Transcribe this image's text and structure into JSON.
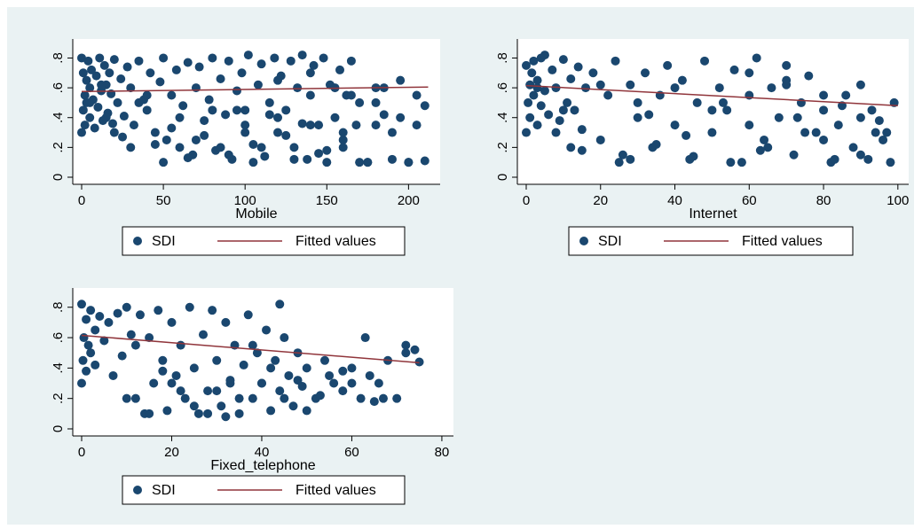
{
  "colors": {
    "outer_bg": "#eaf2f3",
    "plot_bg": "#ffffff",
    "marker": "#1a476f",
    "fit_line": "#90353b",
    "axis": "#000000"
  },
  "chart_data": [
    {
      "type": "scatter",
      "xlabel": "Mobile",
      "ylabel": "",
      "xlim": [
        0,
        215
      ],
      "ylim": [
        0,
        0.88
      ],
      "xticks": [
        0,
        50,
        100,
        150,
        200
      ],
      "xtick_labels": [
        "0",
        "50",
        "100",
        "150",
        "200"
      ],
      "yticks": [
        0,
        0.2,
        0.4,
        0.6,
        0.8
      ],
      "ytick_labels": [
        "0",
        ".2",
        ".4",
        ".6",
        ".8"
      ],
      "grid": false,
      "legend_position": "bottom",
      "series": [
        {
          "name": "SDI",
          "kind": "scatter",
          "x": [
            0,
            0,
            1,
            1,
            2,
            2,
            3,
            3,
            4,
            5,
            5,
            6,
            7,
            8,
            9,
            10,
            11,
            12,
            13,
            14,
            15,
            16,
            17,
            18,
            19,
            20,
            22,
            24,
            26,
            28,
            30,
            32,
            35,
            38,
            40,
            42,
            45,
            48,
            50,
            52,
            55,
            58,
            60,
            62,
            65,
            68,
            70,
            72,
            75,
            78,
            80,
            82,
            85,
            88,
            90,
            92,
            95,
            98,
            100,
            102,
            105,
            108,
            110,
            112,
            115,
            118,
            120,
            122,
            125,
            128,
            130,
            132,
            135,
            138,
            140,
            142,
            145,
            148,
            150,
            152,
            155,
            158,
            160,
            162,
            165,
            168,
            170,
            175,
            180,
            185,
            190,
            195,
            200,
            205,
            210,
            5,
            12,
            20,
            30,
            40,
            50,
            60,
            70,
            80,
            90,
            100,
            110,
            120,
            130,
            140,
            150,
            160,
            170,
            180,
            190,
            200,
            210,
            15,
            25,
            35,
            45,
            55,
            65,
            75,
            85,
            95,
            105,
            115,
            125,
            135,
            145,
            155,
            165,
            175,
            185,
            195,
            205,
            100,
            120,
            140,
            160,
            180
          ],
          "y": [
            0.3,
            0.8,
            0.45,
            0.7,
            0.55,
            0.35,
            0.65,
            0.5,
            0.78,
            0.4,
            0.6,
            0.72,
            0.52,
            0.33,
            0.68,
            0.47,
            0.8,
            0.58,
            0.38,
            0.75,
            0.62,
            0.43,
            0.7,
            0.56,
            0.36,
            0.79,
            0.5,
            0.66,
            0.41,
            0.74,
            0.6,
            0.35,
            0.78,
            0.52,
            0.45,
            0.7,
            0.3,
            0.64,
            0.8,
            0.25,
            0.55,
            0.72,
            0.2,
            0.48,
            0.77,
            0.15,
            0.6,
            0.74,
            0.28,
            0.52,
            0.8,
            0.18,
            0.66,
            0.42,
            0.78,
            0.12,
            0.58,
            0.7,
            0.35,
            0.82,
            0.22,
            0.62,
            0.76,
            0.14,
            0.5,
            0.8,
            0.3,
            0.68,
            0.45,
            0.78,
            0.2,
            0.6,
            0.82,
            0.12,
            0.55,
            0.75,
            0.35,
            0.8,
            0.1,
            0.62,
            0.4,
            0.72,
            0.25,
            0.55,
            0.78,
            0.35,
            0.5,
            0.1,
            0.6,
            0.42,
            0.3,
            0.65,
            0.1,
            0.35,
            0.11,
            0.5,
            0.62,
            0.3,
            0.2,
            0.55,
            0.1,
            0.4,
            0.25,
            0.45,
            0.15,
            0.3,
            0.2,
            0.4,
            0.12,
            0.35,
            0.18,
            0.3,
            0.1,
            0.35,
            0.12,
            0.1,
            0.48,
            0.4,
            0.27,
            0.5,
            0.22,
            0.33,
            0.13,
            0.38,
            0.2,
            0.45,
            0.1,
            0.42,
            0.28,
            0.36,
            0.16,
            0.6,
            0.55,
            0.1,
            0.6,
            0.4,
            0.55,
            0.45,
            0.65,
            0.7,
            0.2,
            0.5
          ],
          "color": "#1a476f"
        },
        {
          "name": "Fitted values",
          "kind": "line",
          "x": [
            0,
            212
          ],
          "y": [
            0.575,
            0.605
          ],
          "color": "#90353b"
        }
      ]
    },
    {
      "type": "scatter",
      "xlabel": "Internet",
      "ylabel": "",
      "xlim": [
        0,
        101
      ],
      "ylim": [
        0,
        0.88
      ],
      "xticks": [
        0,
        20,
        40,
        60,
        80,
        100
      ],
      "xtick_labels": [
        "0",
        "20",
        "40",
        "60",
        "80",
        "100"
      ],
      "yticks": [
        0,
        0.2,
        0.4,
        0.6,
        0.8
      ],
      "ytick_labels": [
        "0",
        ".2",
        ".4",
        ".6",
        ".8"
      ],
      "grid": false,
      "legend_position": "bottom",
      "series": [
        {
          "name": "SDI",
          "kind": "scatter",
          "x": [
            0,
            0,
            0.5,
            1,
            1,
            1.5,
            2,
            2,
            3,
            3,
            4,
            4,
            5,
            6,
            7,
            8,
            9,
            10,
            11,
            12,
            13,
            14,
            15,
            16,
            18,
            20,
            22,
            24,
            26,
            28,
            30,
            32,
            34,
            36,
            38,
            40,
            42,
            44,
            46,
            48,
            50,
            52,
            54,
            56,
            58,
            60,
            62,
            64,
            66,
            68,
            70,
            72,
            74,
            76,
            78,
            80,
            82,
            84,
            86,
            88,
            90,
            92,
            94,
            96,
            98,
            99,
            5,
            10,
            15,
            20,
            25,
            30,
            35,
            40,
            45,
            50,
            55,
            60,
            65,
            70,
            75,
            80,
            85,
            90,
            95,
            3,
            8,
            12,
            28,
            33,
            43,
            53,
            63,
            73,
            83,
            93,
            97,
            60,
            70,
            80,
            90
          ],
          "y": [
            0.3,
            0.75,
            0.5,
            0.62,
            0.4,
            0.7,
            0.55,
            0.78,
            0.35,
            0.65,
            0.48,
            0.8,
            0.58,
            0.42,
            0.72,
            0.6,
            0.38,
            0.79,
            0.5,
            0.66,
            0.45,
            0.74,
            0.32,
            0.6,
            0.7,
            0.25,
            0.55,
            0.78,
            0.15,
            0.62,
            0.4,
            0.7,
            0.2,
            0.55,
            0.75,
            0.35,
            0.65,
            0.12,
            0.5,
            0.78,
            0.3,
            0.6,
            0.45,
            0.72,
            0.1,
            0.55,
            0.8,
            0.25,
            0.6,
            0.4,
            0.75,
            0.15,
            0.5,
            0.68,
            0.3,
            0.45,
            0.1,
            0.35,
            0.55,
            0.2,
            0.4,
            0.12,
            0.3,
            0.25,
            0.1,
            0.5,
            0.82,
            0.45,
            0.18,
            0.62,
            0.1,
            0.5,
            0.22,
            0.6,
            0.14,
            0.45,
            0.1,
            0.35,
            0.2,
            0.65,
            0.3,
            0.25,
            0.48,
            0.15,
            0.38,
            0.6,
            0.3,
            0.2,
            0.12,
            0.42,
            0.28,
            0.5,
            0.18,
            0.4,
            0.12,
            0.45,
            0.3,
            0.7,
            0.62,
            0.55,
            0.62
          ],
          "color": "#1a476f"
        },
        {
          "name": "Fitted values",
          "kind": "line",
          "x": [
            0,
            100
          ],
          "y": [
            0.615,
            0.48
          ],
          "color": "#90353b"
        }
      ]
    },
    {
      "type": "scatter",
      "xlabel": "Fixed_telephone",
      "ylabel": "",
      "xlim": [
        0,
        81
      ],
      "ylim": [
        0,
        0.88
      ],
      "xticks": [
        0,
        20,
        40,
        60,
        80
      ],
      "xtick_labels": [
        "0",
        "20",
        "40",
        "60",
        "80"
      ],
      "yticks": [
        0,
        0.2,
        0.4,
        0.6,
        0.8
      ],
      "ytick_labels": [
        "0",
        ".2",
        ".4",
        ".6",
        ".8"
      ],
      "grid": false,
      "legend_position": "bottom",
      "series": [
        {
          "name": "SDI",
          "kind": "scatter",
          "x": [
            0,
            0,
            0.3,
            0.5,
            1,
            1,
            1.5,
            2,
            2,
            3,
            3,
            4,
            5,
            6,
            7,
            8,
            9,
            10,
            11,
            12,
            13,
            14,
            15,
            16,
            17,
            18,
            19,
            20,
            21,
            22,
            23,
            24,
            25,
            26,
            27,
            28,
            29,
            30,
            31,
            32,
            33,
            34,
            35,
            36,
            37,
            38,
            39,
            40,
            41,
            42,
            43,
            44,
            45,
            46,
            47,
            48,
            49,
            50,
            52,
            54,
            56,
            58,
            60,
            62,
            64,
            66,
            68,
            70,
            72,
            74,
            75,
            10,
            15,
            20,
            25,
            30,
            35,
            40,
            45,
            50,
            55,
            60,
            65,
            18,
            22,
            28,
            33,
            38,
            42,
            48,
            53,
            58,
            63,
            67,
            72,
            12,
            32,
            44
          ],
          "y": [
            0.3,
            0.82,
            0.45,
            0.6,
            0.38,
            0.72,
            0.55,
            0.5,
            0.78,
            0.42,
            0.65,
            0.74,
            0.58,
            0.7,
            0.35,
            0.76,
            0.48,
            0.8,
            0.62,
            0.2,
            0.75,
            0.1,
            0.6,
            0.3,
            0.78,
            0.45,
            0.12,
            0.7,
            0.35,
            0.55,
            0.2,
            0.8,
            0.4,
            0.1,
            0.62,
            0.25,
            0.78,
            0.45,
            0.15,
            0.7,
            0.32,
            0.55,
            0.1,
            0.42,
            0.75,
            0.2,
            0.5,
            0.3,
            0.65,
            0.12,
            0.45,
            0.25,
            0.6,
            0.35,
            0.15,
            0.5,
            0.28,
            0.4,
            0.2,
            0.45,
            0.3,
            0.25,
            0.4,
            0.2,
            0.35,
            0.3,
            0.45,
            0.2,
            0.55,
            0.52,
            0.44,
            0.2,
            0.1,
            0.3,
            0.15,
            0.25,
            0.2,
            0.3,
            0.2,
            0.12,
            0.35,
            0.3,
            0.18,
            0.38,
            0.25,
            0.1,
            0.3,
            0.55,
            0.4,
            0.32,
            0.22,
            0.38,
            0.6,
            0.2,
            0.5,
            0.55,
            0.08,
            0.82
          ],
          "color": "#1a476f"
        },
        {
          "name": "Fitted values",
          "kind": "line",
          "x": [
            0,
            75
          ],
          "y": [
            0.615,
            0.435
          ],
          "color": "#90353b"
        }
      ]
    }
  ]
}
